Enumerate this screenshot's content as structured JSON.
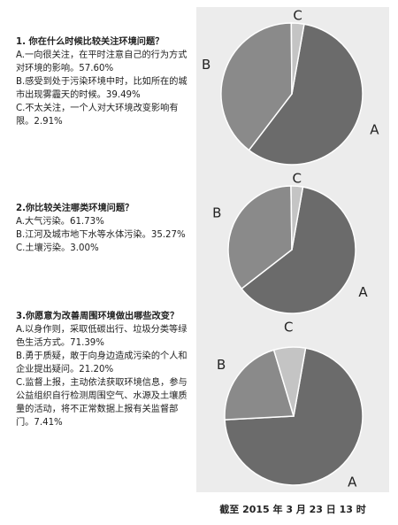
{
  "colors": {
    "A": "#6b6b6b",
    "B": "#8a8a8a",
    "C": "#c4c4c4",
    "stroke": "#ffffff",
    "panel": "#ececec"
  },
  "questions": [
    {
      "title": "1. 你在什么时候比较关注环境问题？",
      "options": [
        "A.一向很关注，在平时注意自己的行为方式对环境的影响。57.60%",
        "B.感受到处于污染环境中时，比如所在的城市出现雾霾天的时候。39.49%",
        "C.不太关注，一个人对大环境改变影响有限。2.91%"
      ]
    },
    {
      "title": "2.你比较关注哪类环境问题？",
      "options": [
        "A.大气污染。61.73%",
        "B.江河及城市地下水等水体污染。35.27%",
        "C.土壤污染。3.00%"
      ]
    },
    {
      "title": "3.你愿意为改善周围环境做出哪些改变？",
      "options": [
        "A.以身作则，采取低碳出行、垃圾分类等绿色生活方式。71.39%",
        "B.勇于质疑，敢于向身边造成污染的个人和企业提出疑问。21.20%",
        "C.监督上报，主动依法获取环境信息，参与公益组织自行检测周围空气、水源及土壤质量的活动，将不正常数据上报有关监督部门。7.41%"
      ]
    }
  ],
  "chart_data": [
    {
      "type": "pie",
      "categories": [
        "A",
        "B",
        "C"
      ],
      "values": [
        57.6,
        39.49,
        2.91
      ]
    },
    {
      "type": "pie",
      "categories": [
        "A",
        "B",
        "C"
      ],
      "values": [
        61.73,
        35.27,
        3.0
      ]
    },
    {
      "type": "pie",
      "categories": [
        "A",
        "B",
        "C"
      ],
      "values": [
        71.39,
        21.2,
        7.41
      ]
    }
  ],
  "footer": "截至 2015 年 3 月 23 日 13 时"
}
